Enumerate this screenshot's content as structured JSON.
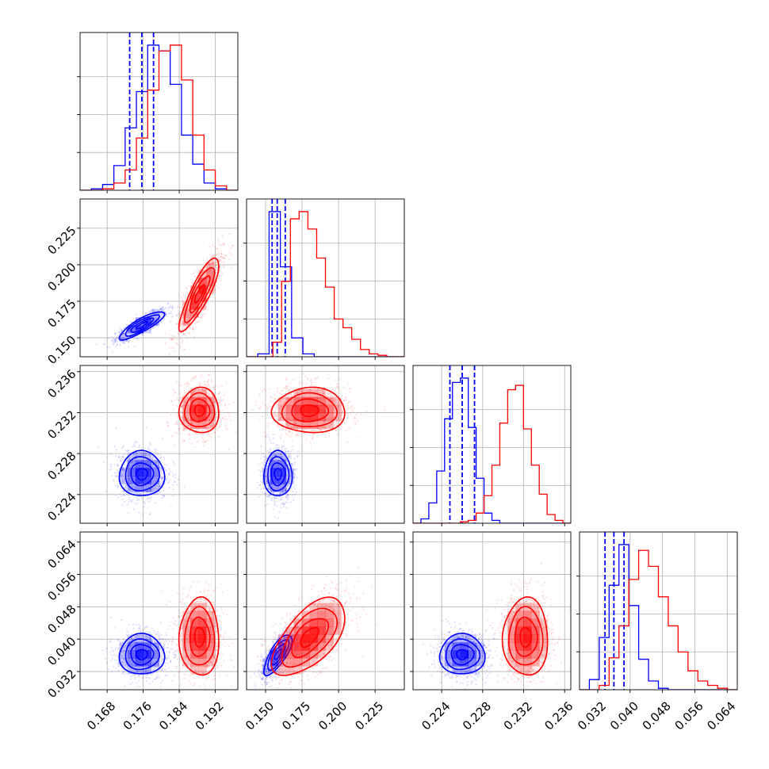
{
  "chart_data": {
    "type": "corner",
    "title": "",
    "parameters": [
      "",
      "",
      "",
      ""
    ],
    "grid": true,
    "ranges": [
      [
        0.162,
        0.197
      ],
      [
        0.137,
        0.245
      ],
      [
        0.2212,
        0.2366
      ],
      [
        0.0275,
        0.0665
      ]
    ],
    "ticks": [
      [
        "0.168",
        "0.176",
        "0.184",
        "0.192"
      ],
      [
        "0.150",
        "0.175",
        "0.200",
        "0.225"
      ],
      [
        "0.224",
        "0.228",
        "0.232",
        "0.236"
      ],
      [
        "0.032",
        "0.040",
        "0.048",
        "0.056",
        "0.064"
      ]
    ],
    "series": [
      {
        "color": "#0000ff",
        "centers": [
          0.1757,
          0.1585,
          0.226,
          0.0362
        ],
        "sigmas": [
          0.0025,
          0.0048,
          0.0011,
          0.0025
        ],
        "quantile_lines": [
          [
            0.173,
            0.1757,
            0.1783
          ],
          [
            0.1545,
            0.158,
            0.1635
          ],
          [
            0.2248,
            0.226,
            0.2272
          ],
          [
            0.0338,
            0.036,
            0.0385
          ]
        ],
        "correlations": {
          "1_0": 0.85,
          "2_0": 0.0,
          "2_1": 0.0,
          "3_0": 0.0,
          "3_1": 0.75,
          "3_2": 0.0
        },
        "histograms": [
          [
            0.0,
            0.01,
            0.04,
            0.17,
            0.43,
            0.68,
            1.0,
            0.96,
            0.73,
            0.38,
            0.18,
            0.05,
            0.01,
            0.0
          ],
          [
            0.0,
            0.02,
            1.0,
            0.62,
            0.13,
            0.02,
            0.0,
            0.0,
            0.0,
            0.0,
            0.0,
            0.0,
            0.0,
            0.0
          ],
          [
            0.0,
            0.03,
            0.14,
            0.36,
            0.72,
            0.97,
            1.0,
            0.66,
            0.31,
            0.07,
            0.02,
            0.0,
            0.0,
            0.0,
            0.0,
            0.0,
            0.0,
            0.0,
            0.0,
            0.0
          ],
          [
            0.0,
            0.07,
            0.36,
            0.72,
            1.0,
            0.58,
            0.21,
            0.06,
            0.01,
            0.0,
            0.0,
            0.0,
            0.0,
            0.0,
            0.0,
            0.0
          ]
        ]
      },
      {
        "color": "#ff0000",
        "centers": [
          0.1885,
          0.18,
          0.2322,
          0.0405
        ],
        "sigmas": [
          0.0022,
          0.0125,
          0.0011,
          0.0048
        ],
        "quantile_lines": [],
        "correlations": {
          "1_0": 0.85,
          "2_0": 0.0,
          "2_1": 0.0,
          "3_0": 0.0,
          "3_1": 0.6,
          "3_2": 0.0
        },
        "histograms": [
          [
            0.0,
            0.0,
            0.01,
            0.05,
            0.14,
            0.36,
            0.69,
            0.96,
            1.0,
            0.76,
            0.38,
            0.14,
            0.03,
            0.0
          ],
          [
            0.0,
            0.0,
            0.0,
            0.1,
            0.52,
            0.95,
            1.0,
            0.88,
            0.68,
            0.48,
            0.26,
            0.2,
            0.12,
            0.05,
            0.02,
            0.01,
            0.0,
            0.0
          ],
          [
            0.0,
            0.0,
            0.0,
            0.0,
            0.0,
            0.0,
            0.01,
            0.02,
            0.07,
            0.19,
            0.4,
            0.69,
            0.92,
            0.95,
            0.65,
            0.4,
            0.2,
            0.06,
            0.02,
            0.0
          ],
          [
            0.0,
            0.0,
            0.03,
            0.22,
            0.44,
            0.76,
            0.96,
            0.85,
            0.64,
            0.44,
            0.26,
            0.13,
            0.06,
            0.03,
            0.01,
            0.0
          ]
        ]
      }
    ]
  }
}
